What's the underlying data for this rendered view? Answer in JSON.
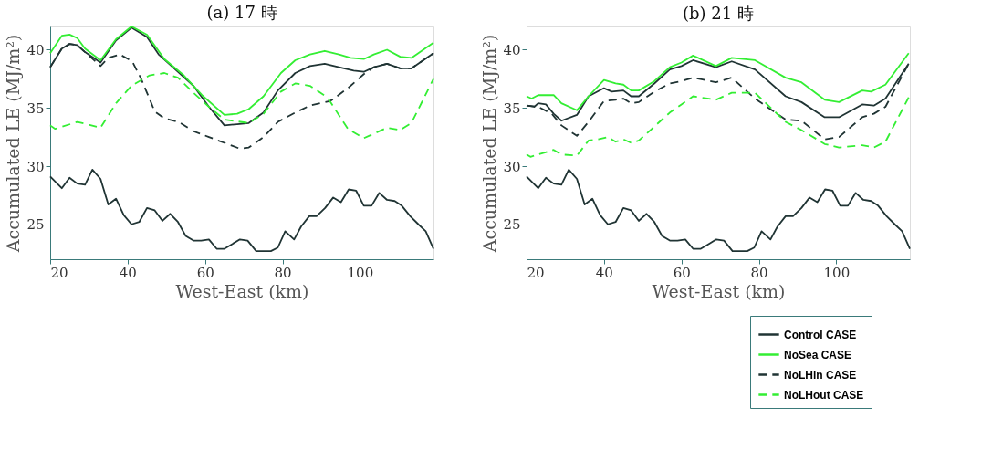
{
  "chart_data": [
    {
      "type": "line",
      "title": "(a) 17 時",
      "xlabel": "West-East (km)",
      "ylabel": "Accumulated LE (MJ/m²)",
      "xlim": [
        20,
        119
      ],
      "xticks": [
        20,
        40,
        60,
        80,
        100
      ],
      "ylim": [
        22,
        42
      ],
      "yticks": [
        25,
        30,
        35,
        40
      ],
      "grid": false,
      "marker": "none",
      "series": [
        {
          "color": "#203434",
          "line_style": "solid",
          "x": [
            20,
            23,
            25,
            27,
            29,
            33,
            37,
            41,
            45,
            48,
            52,
            57,
            61,
            65,
            68.3,
            71.3,
            75.1,
            78.8,
            83.3,
            87.1,
            90.9,
            94.6,
            98.4,
            101,
            103.6,
            107,
            110.4,
            113.3,
            119
          ],
          "values": [
            38.5,
            40.1,
            40.5,
            40.4,
            39.8,
            38.9,
            40.8,
            41.9,
            41.1,
            39.6,
            38.4,
            36.9,
            35.1,
            33.5,
            33.6,
            33.7,
            34.6,
            36.5,
            38.0,
            38.6,
            38.8,
            38.5,
            38.2,
            38.1,
            38.5,
            38.8,
            38.4,
            38.4,
            39.7
          ]
        },
        {
          "color": "#33ee33",
          "line_style": "solid",
          "x": [
            20,
            23,
            25,
            27,
            29,
            33,
            37,
            41,
            45,
            49.5,
            54.5,
            59.2,
            65,
            68.3,
            71.3,
            75.1,
            79.6,
            83.3,
            87.1,
            90.9,
            94.6,
            97.6,
            101,
            103.6,
            107,
            110.4,
            113.3,
            119
          ],
          "values": [
            39.7,
            41.2,
            41.3,
            41.0,
            40.1,
            39.1,
            40.9,
            42.0,
            41.3,
            39.2,
            37.8,
            36.1,
            34.4,
            34.5,
            34.9,
            36.0,
            38.0,
            39.1,
            39.6,
            39.9,
            39.6,
            39.3,
            39.2,
            39.6,
            40.0,
            39.4,
            39.3,
            40.6
          ]
        },
        {
          "color": "#203434",
          "line_style": "dashed",
          "x": [
            20,
            23,
            25,
            27,
            29,
            33,
            35,
            38,
            41.2,
            43.5,
            47,
            49.5,
            53.2,
            57,
            61,
            65,
            69,
            71.3,
            75.1,
            78.8,
            83.3,
            87.1,
            92.4,
            96.9,
            101,
            103.6,
            107,
            110.4,
            113.3,
            119
          ],
          "values": [
            38.5,
            40.1,
            40.5,
            40.4,
            39.8,
            38.6,
            39.3,
            39.6,
            39.0,
            37.5,
            34.7,
            34.1,
            33.8,
            33.0,
            32.5,
            32.0,
            31.5,
            31.6,
            32.5,
            33.8,
            34.6,
            35.2,
            35.6,
            36.7,
            37.9,
            38.5,
            38.8,
            38.4,
            38.4,
            39.7
          ]
        },
        {
          "color": "#33ee33",
          "line_style": "dashed",
          "x": [
            20,
            21.3,
            27,
            33,
            37,
            41,
            45.7,
            49.5,
            53,
            57,
            61,
            65,
            71.3,
            75.1,
            79.6,
            83.3,
            87.1,
            91.6,
            96.9,
            101,
            107,
            110.4,
            113.3,
            119
          ],
          "values": [
            33.5,
            33.2,
            33.8,
            33.3,
            35.4,
            36.9,
            37.8,
            38.0,
            37.6,
            36.3,
            35.1,
            34.0,
            33.7,
            34.5,
            36.4,
            37.1,
            36.9,
            35.9,
            33.2,
            32.4,
            33.3,
            33.1,
            33.7,
            37.5
          ]
        },
        {
          "color": "#203434",
          "line_style": "solid",
          "x": [
            20,
            23,
            25,
            27,
            29,
            30.9,
            33,
            35,
            37,
            39,
            41,
            43,
            45,
            47,
            49,
            51,
            53,
            55,
            57,
            59,
            61,
            63,
            65,
            67,
            69,
            71,
            73.2,
            75.1,
            77,
            78.8,
            80.7,
            83,
            84.8,
            86.9,
            88.8,
            91,
            93.1,
            95.1,
            97.1,
            99,
            101,
            103,
            105,
            107,
            109,
            110.8,
            113,
            115.1,
            117,
            119
          ],
          "values": [
            29.1,
            28.1,
            29.0,
            28.5,
            28.4,
            29.7,
            28.9,
            26.7,
            27.2,
            25.8,
            25.0,
            25.2,
            26.4,
            26.2,
            25.3,
            25.9,
            25.2,
            24.0,
            23.6,
            23.6,
            23.7,
            22.9,
            22.9,
            23.3,
            23.7,
            23.6,
            22.7,
            22.7,
            22.7,
            23.0,
            24.4,
            23.7,
            24.8,
            25.7,
            25.7,
            26.4,
            27.3,
            26.9,
            28.0,
            27.9,
            26.6,
            26.6,
            27.7,
            27.1,
            27.0,
            26.6,
            25.7,
            25.0,
            24.4,
            22.9
          ]
        }
      ]
    },
    {
      "type": "line",
      "title": "(b) 21 時",
      "xlabel": "West-East (km)",
      "ylabel": "Accumulated LE (MJ/m²)",
      "xlim": [
        20,
        119
      ],
      "xticks": [
        20,
        40,
        60,
        80,
        100
      ],
      "ylim": [
        22,
        42
      ],
      "yticks": [
        25,
        30,
        35,
        40
      ],
      "grid": false,
      "legend": "bottom right",
      "marker": "none",
      "series": [
        {
          "name": "Control CASE",
          "color": "#203434",
          "line_style": "solid",
          "x": [
            20,
            22,
            23,
            25,
            27,
            29,
            33,
            36,
            40,
            42,
            45,
            47,
            49,
            53,
            57,
            60,
            63,
            68.9,
            73,
            79,
            86.9,
            91,
            97,
            100.7,
            106.7,
            109.7,
            112.7,
            118.7
          ],
          "values": [
            35.2,
            35.1,
            35.4,
            35.3,
            34.5,
            33.9,
            34.4,
            36.0,
            36.7,
            36.4,
            36.5,
            36.0,
            36.0,
            37.1,
            38.3,
            38.6,
            39.1,
            38.5,
            39.0,
            38.3,
            36.0,
            35.5,
            34.2,
            34.2,
            35.3,
            35.2,
            35.8,
            38.8
          ]
        },
        {
          "name": "NoSea CASE",
          "color": "#33ee33",
          "line_style": "solid",
          "x": [
            20,
            21.3,
            23,
            27,
            29,
            33,
            36,
            40,
            43,
            45,
            47,
            49,
            53,
            57,
            60,
            63,
            68.9,
            73,
            79,
            86.9,
            91,
            97,
            100.7,
            106.7,
            109,
            112.7,
            118.7
          ],
          "values": [
            36.0,
            35.8,
            36.1,
            36.1,
            35.4,
            34.8,
            36.0,
            37.4,
            37.1,
            37.0,
            36.5,
            36.5,
            37.3,
            38.5,
            38.9,
            39.5,
            38.6,
            39.3,
            39.1,
            37.6,
            37.2,
            35.7,
            35.5,
            36.5,
            36.4,
            37.0,
            39.7
          ]
        },
        {
          "name": "NoLHin CASE",
          "color": "#203434",
          "line_style": "dashed",
          "x": [
            20,
            23,
            26.5,
            29,
            33,
            36,
            40,
            43,
            45,
            47,
            49,
            53,
            57,
            60,
            63,
            68.9,
            73,
            79,
            86.9,
            91,
            97,
            100.7,
            106.7,
            109.7,
            112.7,
            118.7
          ],
          "values": [
            35.2,
            35.1,
            34.5,
            33.5,
            32.6,
            33.8,
            35.6,
            35.7,
            35.8,
            35.4,
            35.5,
            36.4,
            37.1,
            37.3,
            37.6,
            37.2,
            37.6,
            35.8,
            34.0,
            33.9,
            32.3,
            32.5,
            34.2,
            34.5,
            35.1,
            38.8
          ]
        },
        {
          "name": "NoLHout CASE",
          "color": "#33ee33",
          "line_style": "dashed",
          "x": [
            20,
            21,
            27,
            29,
            33,
            36,
            38.5,
            41,
            43,
            45,
            47,
            49,
            53,
            57,
            60,
            63,
            68.9,
            73,
            79,
            86.9,
            91,
            97,
            100.7,
            106.7,
            109.7,
            112.7,
            118.7
          ],
          "values": [
            31.0,
            30.8,
            31.4,
            31.0,
            30.9,
            32.2,
            32.3,
            32.5,
            32.1,
            32.3,
            32.0,
            32.2,
            33.4,
            34.6,
            35.3,
            36.0,
            35.7,
            36.3,
            36.3,
            33.8,
            33.1,
            31.9,
            31.6,
            31.8,
            31.6,
            32.1,
            35.9
          ]
        },
        {
          "color": "#203434",
          "line_style": "solid",
          "x": [
            20,
            23,
            25,
            27,
            29,
            30.9,
            33,
            35,
            37,
            39,
            41,
            43,
            45,
            47,
            49,
            51,
            53,
            55,
            57,
            59,
            61,
            63,
            65,
            67,
            69,
            71,
            73.2,
            75.1,
            77,
            78.8,
            80.7,
            83,
            84.8,
            86.9,
            88.8,
            91,
            93.1,
            95.1,
            97.1,
            99,
            101,
            103,
            105,
            107,
            109,
            110.8,
            113,
            115.1,
            117,
            119
          ],
          "values": [
            29.1,
            28.1,
            29.0,
            28.5,
            28.4,
            29.7,
            28.9,
            26.7,
            27.2,
            25.8,
            25.0,
            25.2,
            26.4,
            26.2,
            25.3,
            25.9,
            25.2,
            24.0,
            23.6,
            23.6,
            23.7,
            22.9,
            22.9,
            23.3,
            23.7,
            23.6,
            22.7,
            22.7,
            22.7,
            23.0,
            24.4,
            23.7,
            24.8,
            25.7,
            25.7,
            26.4,
            27.3,
            26.9,
            28.0,
            27.9,
            26.6,
            26.6,
            27.7,
            27.1,
            27.0,
            26.6,
            25.7,
            25.0,
            24.4,
            22.9
          ]
        }
      ]
    }
  ]
}
